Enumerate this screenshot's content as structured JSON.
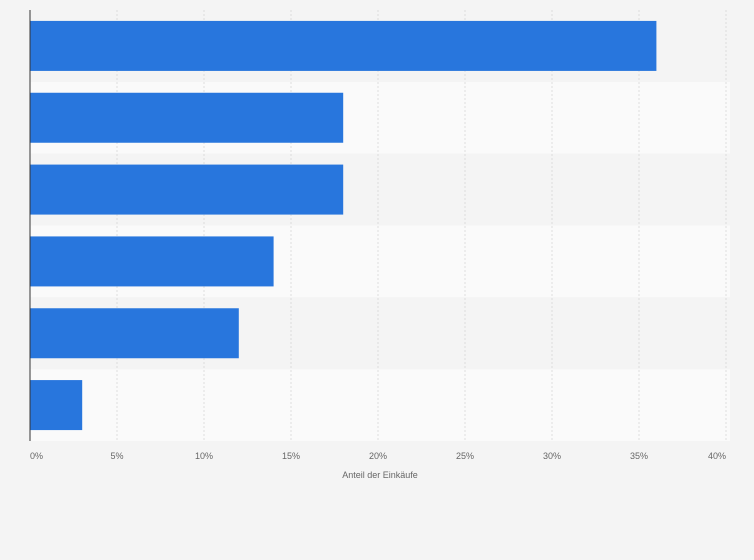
{
  "chart_data": {
    "type": "bar",
    "orientation": "horizontal",
    "categories": [
      "",
      "",
      "",
      "",
      "",
      ""
    ],
    "values": [
      36,
      18,
      18,
      14,
      12,
      3
    ],
    "xlabel": "Anteil der Einkäufe",
    "ylabel": "",
    "xlim": [
      0,
      40
    ],
    "x_ticks": [
      0,
      5,
      10,
      15,
      20,
      25,
      30,
      35,
      40
    ],
    "x_tick_labels": [
      "0%",
      "5%",
      "10%",
      "15%",
      "20%",
      "25%",
      "30%",
      "35%",
      "40%"
    ],
    "grid": true,
    "bar_color": "#2876dd",
    "band_colors": [
      "#f4f4f4",
      "#fafafa"
    ]
  }
}
